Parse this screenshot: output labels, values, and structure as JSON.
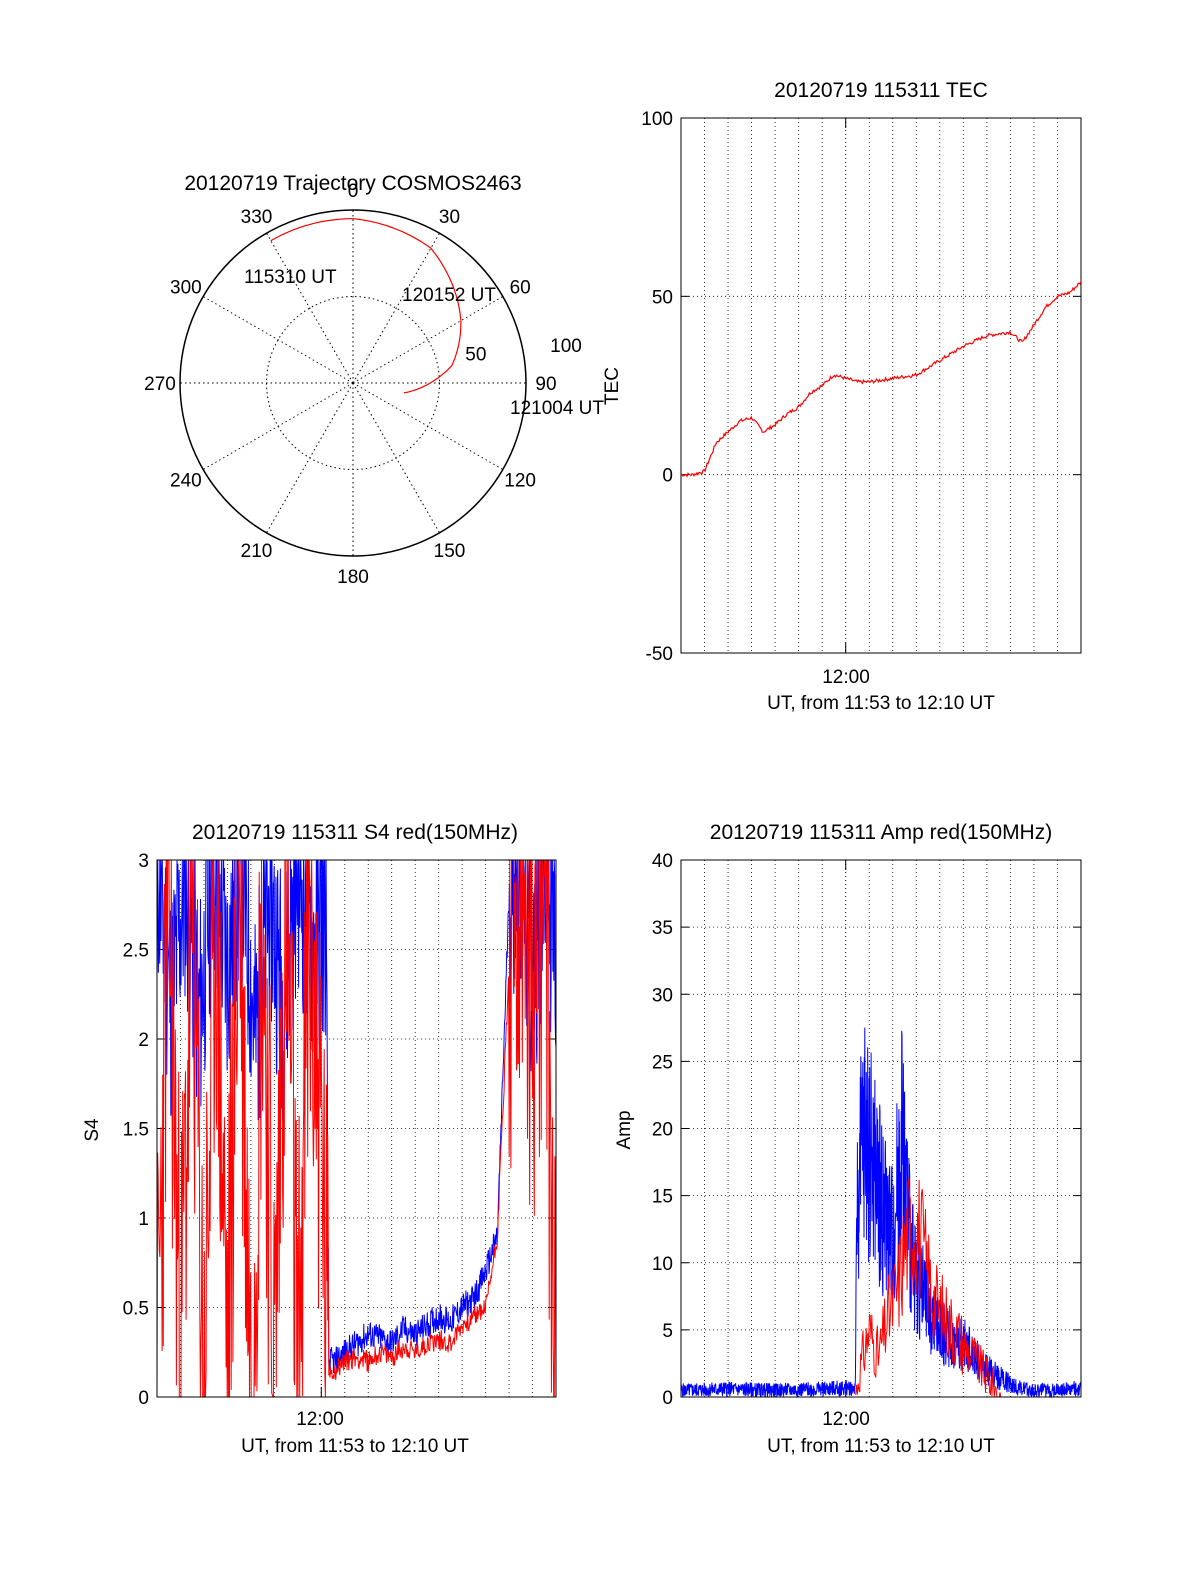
{
  "colors": {
    "primary": "#ff0000",
    "secondary": "#0000ff",
    "axis": "#000000",
    "grid": "#000000"
  },
  "chart_data": [
    {
      "id": "trajectory",
      "type": "polar",
      "title": "20120719 Trajectory COSMOS2463",
      "azimuth_labels": [
        "0",
        "30",
        "60",
        "90",
        "120",
        "150",
        "180",
        "210",
        "240",
        "270",
        "300",
        "330"
      ],
      "elevation_labels": [
        "50",
        "100"
      ],
      "grid": true,
      "annotations": {
        "start": "115310 UT",
        "mid": "120152 UT",
        "end": "121004 UT"
      },
      "track": {
        "azimuth_deg": [
          -30,
          0,
          30,
          60,
          80,
          101
        ],
        "radius": [
          95,
          95,
          90,
          72,
          58,
          30
        ]
      }
    },
    {
      "id": "tec",
      "type": "line",
      "title": "20120719 115311 TEC",
      "ylabel": "TEC",
      "xlabel": "UT, from 11:53 to 12:10 UT",
      "x_tick_label": "12:00",
      "ylim": [
        -50,
        100
      ],
      "y_ticks": [
        -50,
        0,
        50,
        100
      ],
      "grid": true,
      "series": [
        {
          "color": "#ff0000",
          "x_minutes": [
            0,
            0.5,
            1.0,
            1.5,
            2.0,
            2.5,
            3.0,
            3.5,
            4.0,
            4.5,
            5.0,
            5.5,
            6.0,
            6.5,
            7.0,
            7.5,
            8.0,
            9.0,
            10.0,
            11.0,
            12.0,
            13.0,
            14.0,
            14.5,
            15.0,
            15.5,
            16.0,
            16.5,
            17.0
          ],
          "values": [
            0,
            0,
            1,
            9,
            12,
            15,
            16,
            12,
            14,
            17,
            19,
            23,
            25,
            28,
            27,
            26,
            26,
            27,
            28,
            32,
            36,
            39,
            40,
            37,
            42,
            47,
            50,
            51,
            54
          ]
        }
      ]
    },
    {
      "id": "s4",
      "type": "line",
      "title": "20120719 115311 S4 red(150MHz)",
      "ylabel": "S4",
      "xlabel": "UT, from 11:53 to 12:10 UT",
      "x_tick_label": "12:00",
      "ylim": [
        0,
        3
      ],
      "y_ticks": [
        0,
        0.5,
        1,
        1.5,
        2,
        2.5,
        3
      ],
      "grid": true,
      "series": [
        {
          "color": "#0000ff",
          "x_minutes": [
            0,
            0.6,
            1.2,
            1.8,
            2.4,
            3.0,
            3.6,
            4.2,
            4.8,
            5.4,
            6.0,
            6.6,
            7.2,
            7.3,
            7.6,
            8.0,
            8.5,
            9.0,
            9.5,
            10.0,
            10.5,
            11.0,
            11.5,
            12.0,
            12.5,
            13.0,
            13.5,
            14.0,
            14.5,
            15.0,
            15.5,
            16.0,
            16.5,
            17.0
          ],
          "values": [
            3.0,
            2.2,
            2.9,
            2.1,
            3.0,
            2.4,
            3.0,
            2.0,
            2.8,
            2.2,
            3.0,
            2.5,
            2.7,
            0.2,
            0.2,
            0.25,
            0.3,
            0.35,
            0.33,
            0.3,
            0.38,
            0.35,
            0.4,
            0.45,
            0.42,
            0.5,
            0.55,
            0.7,
            0.9,
            2.8,
            3.0,
            2.3,
            3.0,
            2.5
          ]
        },
        {
          "color": "#ff0000",
          "x_minutes": [
            0,
            0.5,
            1.0,
            1.5,
            2.0,
            2.5,
            3.0,
            3.5,
            4.0,
            4.5,
            5.0,
            5.5,
            6.0,
            6.5,
            7.0,
            7.3,
            7.6,
            8.0,
            8.5,
            9.0,
            9.5,
            10.0,
            10.5,
            11.0,
            11.5,
            12.0,
            12.5,
            13.0,
            13.5,
            14.0,
            14.5,
            15.0,
            15.5,
            16.0,
            16.5,
            17.0
          ],
          "values": [
            0.0,
            3.0,
            0.1,
            2.8,
            0.0,
            2.9,
            0.2,
            3.0,
            0.0,
            2.7,
            0.1,
            3.0,
            0.0,
            2.6,
            1.5,
            0.15,
            0.15,
            0.2,
            0.22,
            0.2,
            0.25,
            0.22,
            0.28,
            0.25,
            0.3,
            0.32,
            0.3,
            0.4,
            0.45,
            0.5,
            0.9,
            2.4,
            2.9,
            2.2,
            3.0,
            0.0
          ]
        }
      ]
    },
    {
      "id": "amp",
      "type": "line",
      "title": "20120719 115311 Amp red(150MHz)",
      "ylabel": "Amp",
      "xlabel": "UT, from 11:53 to 12:10 UT",
      "x_tick_label": "12:00",
      "ylim": [
        0,
        40
      ],
      "y_ticks": [
        0,
        5,
        10,
        15,
        20,
        25,
        30,
        35,
        40
      ],
      "grid": true,
      "series": [
        {
          "color": "#0000ff",
          "x_minutes": [
            0,
            2,
            4,
            6,
            7.4,
            7.5,
            7.8,
            8.2,
            8.6,
            9.0,
            9.4,
            9.8,
            10.2,
            10.6,
            11.0,
            11.5,
            12.0,
            12.5,
            13.0,
            13.5,
            14.0,
            14.5,
            15,
            17
          ],
          "values": [
            0.5,
            0.6,
            0.5,
            0.6,
            0.7,
            15,
            20,
            17,
            14,
            12,
            20,
            10,
            8,
            6,
            5,
            4,
            4,
            3,
            2,
            1.5,
            1,
            0.6,
            0.5,
            0.6
          ]
        },
        {
          "color": "#ff0000",
          "x_minutes": [
            7.4,
            7.6,
            8.0,
            8.4,
            8.8,
            9.2,
            9.6,
            10.0,
            10.4,
            10.8,
            11.2,
            11.6,
            12.0,
            12.4,
            12.8,
            13.2,
            13.6
          ],
          "values": [
            0,
            2,
            5,
            3,
            6,
            8,
            12,
            13,
            10,
            7,
            6,
            5,
            4,
            3,
            2,
            1,
            0
          ]
        }
      ]
    }
  ]
}
